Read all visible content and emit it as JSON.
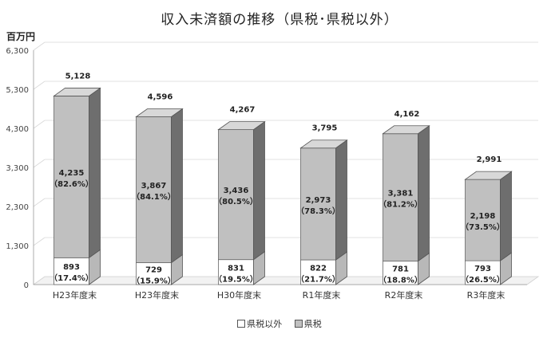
{
  "chart_data": {
    "type": "bar",
    "stacked": true,
    "title": "収入未済額の推移（県税･県税以外）",
    "unit": "百万円",
    "categories": [
      "H23年度末",
      "H23年度末",
      "H30年度末",
      "R1年度末",
      "R2年度末",
      "R3年度末"
    ],
    "series": [
      {
        "name": "県税以外",
        "values": [
          893,
          729,
          831,
          822,
          781,
          793
        ],
        "value_labels": [
          "893",
          "729",
          "831",
          "822",
          "781",
          "793"
        ],
        "percent_labels": [
          "（17.4%）",
          "（15.9%）",
          "（19.5%）",
          "（21.7%）",
          "（18.8%）",
          "（26.5%）"
        ],
        "color": "#ffffff"
      },
      {
        "name": "県税",
        "values": [
          4235,
          3867,
          3436,
          2973,
          3381,
          2198
        ],
        "value_labels": [
          "4,235",
          "3,867",
          "3,436",
          "2,973",
          "3,381",
          "2,198"
        ],
        "percent_labels": [
          "（82.6%）",
          "（84.1%）",
          "（80.5%）",
          "（78.3%）",
          "（81.2%）",
          "（73.5%）"
        ],
        "color": "#c0c0c0"
      }
    ],
    "totals": [
      "5,128",
      "4,596",
      "4,267",
      "3,795",
      "4,162",
      "2,991"
    ],
    "ylim": [
      0,
      6300
    ],
    "yticks": [
      0,
      1300,
      2300,
      3300,
      4300,
      5300,
      6300
    ],
    "ytick_labels": [
      "0",
      "1,300",
      "2,300",
      "3,300",
      "4,300",
      "5,300",
      "6,300"
    ],
    "gridlines": true,
    "legend_position": "bottom"
  }
}
